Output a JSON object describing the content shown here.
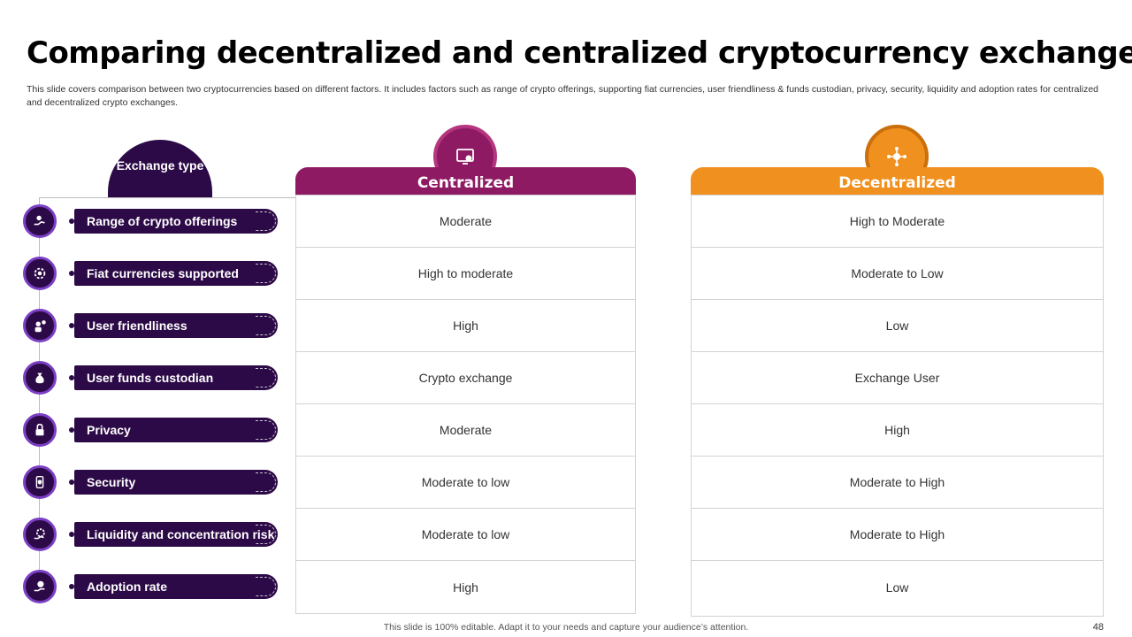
{
  "slide": {
    "title": "Comparing decentralized and centralized cryptocurrency exchanges",
    "subtitle": "This slide covers comparison between two cryptocurrencies based on different factors. It includes factors such as range of crypto offerings, supporting fiat currencies, user friendliness & funds custodian, privacy, security, liquidity and adoption rates for centralized and decentralized crypto exchanges.",
    "footer": "This slide is 100% editable. Adapt it to your needs and capture your audience’s attention.",
    "page_number": "48"
  },
  "exchange_type_header": "Exchange type",
  "colors": {
    "purple_dark": "#2c0a47",
    "purple_ring": "#7b3fc4",
    "magenta": "#8e1a63",
    "orange": "#f0901e"
  },
  "factors": [
    {
      "label": "Range of crypto offerings",
      "icon": "hand-coins-icon"
    },
    {
      "label": "Fiat currencies supported",
      "icon": "currency-gear-icon"
    },
    {
      "label": "User friendliness",
      "icon": "user-chat-icon"
    },
    {
      "label": "User funds custodian",
      "icon": "money-bag-icon"
    },
    {
      "label": "Privacy",
      "icon": "padlock-icon"
    },
    {
      "label": "Security",
      "icon": "phone-shield-icon"
    },
    {
      "label": "Liquidity and concentration risk",
      "icon": "gear-hand-icon"
    },
    {
      "label": "Adoption rate",
      "icon": "hand-bitcoin-icon"
    }
  ],
  "centralized": {
    "header": "Centralized",
    "icon": "monitor-coin-icon",
    "values": [
      "Moderate",
      "High to moderate",
      "High",
      "Crypto exchange",
      "Moderate",
      "Moderate to low",
      "Moderate to low",
      "High"
    ]
  },
  "decentralized": {
    "header": "Decentralized",
    "icon": "network-hub-icon",
    "values": [
      "High to Moderate",
      "Moderate to Low",
      "Low",
      "Exchange User",
      "High",
      "Moderate to High",
      "Moderate to High",
      "Low"
    ]
  }
}
